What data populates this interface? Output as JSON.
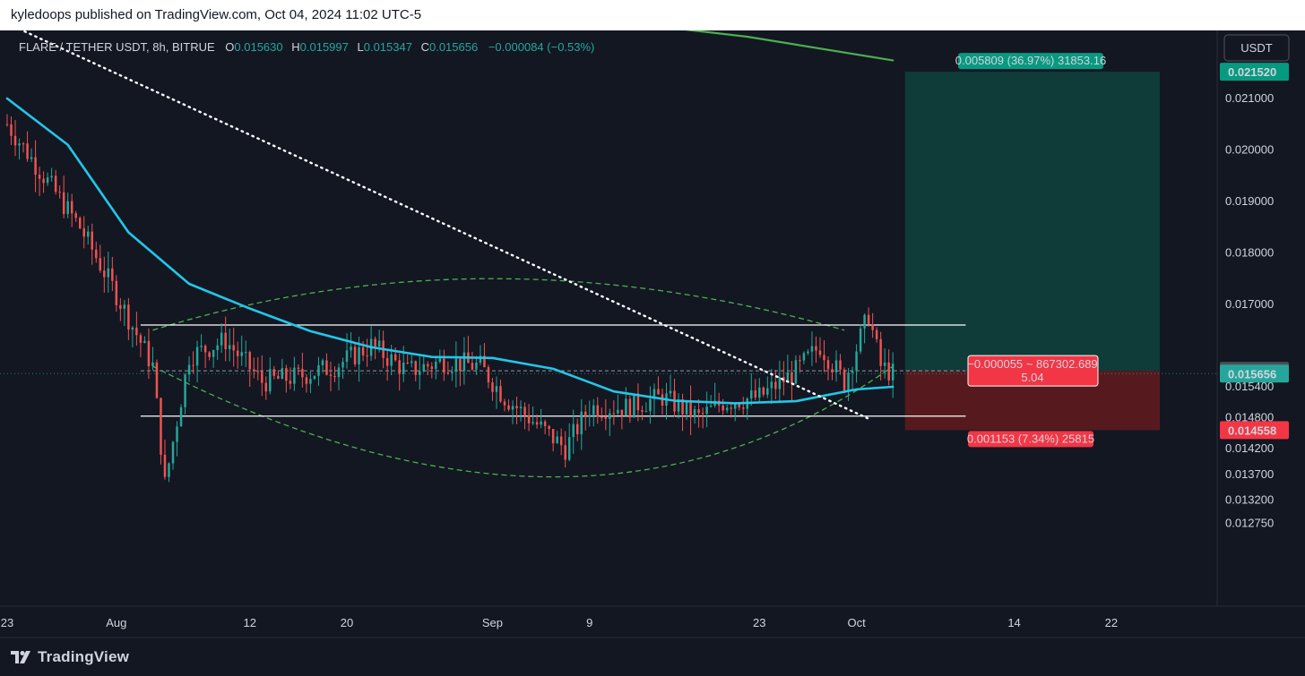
{
  "header": {
    "text": "kyledoops published on TradingView.com, Oct 04, 2024 11:02 UTC-5"
  },
  "legend": {
    "symbol": "FLARE / TETHER USDT, 8h, BITRUE",
    "open_label": "O",
    "open": "0.015630",
    "high_label": "H",
    "high": "0.015997",
    "low_label": "L",
    "low": "0.015347",
    "close_label": "C",
    "close": "0.015656",
    "change": "−0.000084 (−0.53%)"
  },
  "currency_button": "USDT",
  "footer": {
    "brand": "TradingView"
  },
  "colors": {
    "background": "#131722",
    "up": "#26a69a",
    "down": "#ef5350",
    "ma": "#22c7e8",
    "long_ma": "#4caf50",
    "target_zone": "#0f3d3a",
    "stop_zone": "#5a1a1f"
  },
  "chart_data": {
    "type": "candlestick",
    "title": "",
    "ylim": [
      0.0125,
      0.02265
    ],
    "y_ticks": [
      "0.021000",
      "0.020000",
      "0.019000",
      "0.018000",
      "0.017000",
      "0.015400",
      "0.014800",
      "0.014200",
      "0.013700",
      "0.013200",
      "0.012750"
    ],
    "x_ticks": [
      {
        "label": "23",
        "date": "2024-07-23"
      },
      {
        "label": "Aug",
        "date": "2024-08-01"
      },
      {
        "label": "12",
        "date": "2024-08-12"
      },
      {
        "label": "20",
        "date": "2024-08-20"
      },
      {
        "label": "Sep",
        "date": "2024-09-01"
      },
      {
        "label": "9",
        "date": "2024-09-09"
      },
      {
        "label": "23",
        "date": "2024-09-23"
      },
      {
        "label": "Oct",
        "date": "2024-10-01"
      },
      {
        "label": "14",
        "date": "2024-10-14"
      },
      {
        "label": "22",
        "date": "2024-10-22"
      }
    ],
    "xlim": [
      "2024-07-23",
      "2024-10-26"
    ],
    "price_badges": [
      {
        "value": "0.021520",
        "price": 0.02152,
        "color": "#089981"
      },
      {
        "value": "0.015711",
        "price": 0.015711,
        "color": "#4a4e57"
      },
      {
        "value": "0.015656",
        "price": 0.015656,
        "color": "#26a69a"
      },
      {
        "value": "0.014558",
        "price": 0.014558,
        "color": "#f23645"
      }
    ],
    "series": [
      {
        "name": "",
        "kind": "price-path",
        "points": [
          [
            "2024-07-23",
            0.0205
          ],
          [
            "2024-07-26",
            0.0195
          ],
          [
            "2024-07-29",
            0.0185
          ],
          [
            "2024-08-01",
            0.0172
          ],
          [
            "2024-08-04",
            0.0158
          ],
          [
            "2024-08-05",
            0.0135
          ],
          [
            "2024-08-07",
            0.016
          ],
          [
            "2024-08-10",
            0.0163
          ],
          [
            "2024-08-13",
            0.0155
          ],
          [
            "2024-08-16",
            0.0156
          ],
          [
            "2024-08-19",
            0.0158
          ],
          [
            "2024-08-22",
            0.0162
          ],
          [
            "2024-08-25",
            0.0157
          ],
          [
            "2024-08-28",
            0.0159
          ],
          [
            "2024-08-31",
            0.0158
          ],
          [
            "2024-09-02",
            0.0152
          ],
          [
            "2024-09-05",
            0.0146
          ],
          [
            "2024-09-07",
            0.0142
          ],
          [
            "2024-09-09",
            0.015
          ],
          [
            "2024-09-12",
            0.015
          ],
          [
            "2024-09-15",
            0.0152
          ],
          [
            "2024-09-18",
            0.0148
          ],
          [
            "2024-09-20",
            0.0151
          ],
          [
            "2024-09-23",
            0.0152
          ],
          [
            "2024-09-26",
            0.0157
          ],
          [
            "2024-09-28",
            0.0162
          ],
          [
            "2024-09-30",
            0.0155
          ],
          [
            "2024-10-02",
            0.0168
          ],
          [
            "2024-10-03",
            0.0158
          ],
          [
            "2024-10-04",
            0.015656
          ]
        ]
      },
      {
        "name": "",
        "kind": "moving-average",
        "points": [
          [
            "2024-07-23",
            0.021
          ],
          [
            "2024-07-28",
            0.0201
          ],
          [
            "2024-08-02",
            0.0184
          ],
          [
            "2024-08-07",
            0.0174
          ],
          [
            "2024-08-12",
            0.01692
          ],
          [
            "2024-08-17",
            0.01648
          ],
          [
            "2024-08-22",
            0.01617
          ],
          [
            "2024-08-27",
            0.01598
          ],
          [
            "2024-09-01",
            0.01596
          ],
          [
            "2024-09-06",
            0.01575
          ],
          [
            "2024-09-11",
            0.01531
          ],
          [
            "2024-09-16",
            0.01513
          ],
          [
            "2024-09-21",
            0.01508
          ],
          [
            "2024-09-26",
            0.01512
          ],
          [
            "2024-10-01",
            0.01535
          ],
          [
            "2024-10-04",
            0.0154
          ]
        ]
      },
      {
        "name": "",
        "kind": "long-moving-average",
        "points": [
          [
            "2024-09-11",
            0.0225
          ],
          [
            "2024-09-22",
            0.0222
          ],
          [
            "2024-10-04",
            0.02174
          ]
        ]
      }
    ],
    "trendline_dotted": {
      "from": [
        "2024-07-24",
        0.02235
      ],
      "to": [
        "2024-10-02",
        0.01478
      ]
    },
    "horizontal_levels": [
      {
        "price": 0.0166,
        "from": "2024-08-03",
        "to": "2024-10-10",
        "style": "solid"
      },
      {
        "price": 0.01483,
        "from": "2024-08-03",
        "to": "2024-10-10",
        "style": "solid"
      },
      {
        "price": 0.015711,
        "from": "2024-08-03",
        "to": "2024-10-10",
        "style": "dashed"
      }
    ],
    "curved_channel": {
      "upper": [
        [
          "2024-08-04",
          0.0165
        ],
        [
          "2024-09-01",
          0.0175
        ],
        [
          "2024-09-30",
          0.0165
        ]
      ],
      "lower": [
        [
          "2024-08-04",
          0.0158
        ],
        [
          "2024-09-06",
          0.01365
        ],
        [
          "2024-10-04",
          0.0158
        ]
      ]
    },
    "position": {
      "kind": "long",
      "from": "2024-10-05",
      "to": "2024-10-26",
      "entry": 0.015711,
      "target": 0.02152,
      "stop": 0.014558,
      "target_label": "0.005809 (36.97%) 31853.16",
      "center_label_1": "−0.000055 ~ 867302.689",
      "center_label_2": "5.04",
      "stop_label": "0.001153 (7.34%) 25815"
    }
  }
}
